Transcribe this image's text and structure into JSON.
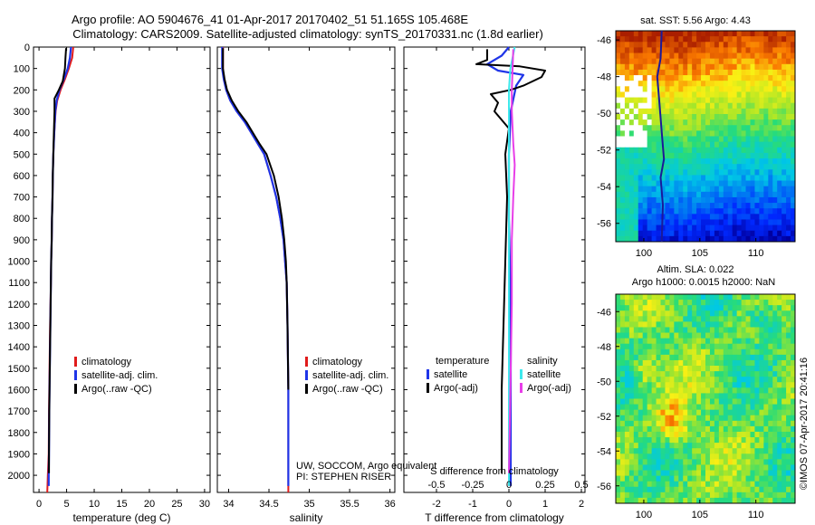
{
  "title": {
    "line1": "Argo profile: AO 5904676_41 01-Apr-2017 20170402_51 51.165S 105.468E",
    "line2": "Climatology: CARS2009. Satellite-adjusted climatology: synTS_20170331.nc (1.8d earlier)"
  },
  "colors": {
    "climatology": "#e01b1b",
    "satellite": "#1f35e8",
    "argo": "#000000",
    "sal_satellite": "#3ee8ec",
    "sal_argo": "#e83ee8"
  },
  "depth_axis": {
    "ylim": [
      0,
      2080
    ],
    "ticks": [
      0,
      100,
      200,
      300,
      400,
      500,
      600,
      700,
      800,
      900,
      1000,
      1100,
      1200,
      1300,
      1400,
      1500,
      1600,
      1700,
      1800,
      1900,
      2000
    ]
  },
  "chart_data": [
    {
      "id": "temperature",
      "type": "line",
      "xlabel": "temperature (deg C)",
      "xlim": [
        -1,
        31
      ],
      "xticks": [
        0,
        5,
        10,
        15,
        20,
        25,
        30
      ],
      "legend": [
        "climatology",
        "satellite-adj. clim.",
        "Argo(..raw -QC)"
      ],
      "series": [
        {
          "name": "climatology",
          "color": "climatology",
          "x": [
            6.2,
            6.0,
            5.4,
            4.7,
            3.9,
            3.3,
            3.0,
            2.75,
            2.6,
            2.5,
            2.45,
            2.35,
            2.3,
            2.2,
            2.15,
            2.0,
            1.9,
            1.8,
            1.75,
            1.6,
            1.5
          ],
          "y": [
            0,
            50,
            100,
            150,
            200,
            250,
            300,
            400,
            500,
            600,
            700,
            800,
            900,
            1000,
            1100,
            1300,
            1500,
            1700,
            1900,
            2000,
            2080
          ]
        },
        {
          "name": "satellite",
          "color": "satellite",
          "x": [
            5.8,
            5.6,
            5.2,
            4.5,
            3.7,
            3.2,
            2.95,
            2.75,
            2.6,
            2.5,
            2.45,
            2.35,
            2.3,
            2.2,
            2.15,
            2.05,
            1.95,
            1.85,
            1.8,
            1.75,
            1.75
          ],
          "y": [
            0,
            50,
            100,
            150,
            200,
            250,
            300,
            400,
            500,
            600,
            700,
            800,
            900,
            1000,
            1100,
            1300,
            1500,
            1700,
            1900,
            2000,
            2050
          ]
        },
        {
          "name": "argo",
          "color": "argo",
          "x": [
            4.9,
            4.8,
            4.7,
            4.3,
            3.6,
            2.8,
            2.8,
            2.7,
            2.6,
            2.5,
            2.45,
            2.35,
            2.3,
            2.2,
            2.15,
            2.05,
            1.95,
            1.85,
            1.8,
            1.8
          ],
          "y": [
            5,
            50,
            100,
            160,
            200,
            240,
            300,
            400,
            500,
            600,
            700,
            800,
            900,
            1000,
            1100,
            1300,
            1500,
            1700,
            1900,
            1990
          ]
        }
      ]
    },
    {
      "id": "salinity",
      "type": "line",
      "xlabel": "salinity",
      "xlim": [
        33.86,
        36.06
      ],
      "xticks": [
        34,
        34.5,
        35,
        35.5,
        36
      ],
      "legend": [
        "climatology",
        "satellite-adj. clim.",
        "Argo(..raw -QC)"
      ],
      "annotation": [
        "UW, SOCCOM, Argo equivalent",
        "PI: STEPHEN RISER"
      ],
      "series": [
        {
          "name": "climatology",
          "color": "climatology",
          "x": [
            33.93,
            33.93,
            33.94,
            33.97,
            34.02,
            34.1,
            34.2,
            34.28,
            34.36,
            34.44,
            34.52,
            34.59,
            34.64,
            34.68,
            34.7,
            34.72,
            34.73,
            34.74,
            34.74
          ],
          "y": [
            0,
            100,
            150,
            200,
            250,
            300,
            350,
            400,
            450,
            500,
            600,
            700,
            800,
            900,
            1000,
            1100,
            1300,
            1600,
            2080
          ]
        },
        {
          "name": "satellite",
          "color": "satellite",
          "x": [
            33.92,
            33.92,
            33.94,
            33.97,
            34.02,
            34.1,
            34.2,
            34.28,
            34.36,
            34.44,
            34.52,
            34.59,
            34.64,
            34.68,
            34.7,
            34.72,
            34.73,
            34.74,
            34.74
          ],
          "y": [
            0,
            100,
            150,
            200,
            250,
            300,
            350,
            400,
            450,
            500,
            600,
            700,
            800,
            900,
            1000,
            1100,
            1300,
            1600,
            2050
          ]
        },
        {
          "name": "argo",
          "color": "argo",
          "x": [
            33.93,
            33.93,
            33.95,
            33.98,
            34.04,
            34.12,
            34.22,
            34.3,
            34.38,
            34.47,
            34.56,
            34.62,
            34.66,
            34.69,
            34.71,
            34.72,
            34.73,
            34.74
          ],
          "y": [
            5,
            100,
            150,
            200,
            250,
            300,
            350,
            400,
            450,
            500,
            600,
            700,
            800,
            900,
            1000,
            1100,
            1300,
            1600
          ]
        }
      ]
    },
    {
      "id": "difference",
      "type": "line",
      "xlabel": "T difference from climatology",
      "xlabel2": "S difference from climatology",
      "xlim": [
        -2.9,
        2.1
      ],
      "xticks": [
        -2,
        -1,
        0,
        1,
        2
      ],
      "x2lim": [
        -0.725,
        0.525
      ],
      "x2ticks": [
        -0.5,
        -0.25,
        0,
        0.25,
        0.5
      ],
      "x2ticklabels": [
        "-0.5",
        "-0.25",
        "0",
        "0.25",
        "0.5"
      ],
      "legend_temperature_title": "temperature",
      "legend_salinity_title": "salinity",
      "legend_temperature": [
        "satellite",
        "Argo(-adj)"
      ],
      "legend_salinity": [
        "satellite",
        "Argo(-adj)"
      ],
      "series": [
        {
          "name": "T satellite",
          "color": "satellite",
          "scale": "T",
          "x": [
            0,
            -0.2,
            -0.6,
            -0.3,
            0.4,
            0.2,
            0.05,
            0,
            0,
            0.05,
            0.05,
            0.05,
            0.05
          ],
          "y": [
            0,
            40,
            80,
            110,
            130,
            180,
            300,
            500,
            800,
            1200,
            1600,
            1900,
            2050
          ]
        },
        {
          "name": "T argo",
          "color": "argo",
          "scale": "T",
          "x": [
            -0.6,
            -0.6,
            -0.9,
            0.3,
            1.0,
            0.9,
            0.4,
            0.05,
            -0.5,
            -0.3,
            -0.4,
            0.0,
            -0.1,
            -0.05,
            -0.1,
            -0.15,
            -0.2,
            -0.2,
            -0.2
          ],
          "y": [
            10,
            60,
            80,
            90,
            110,
            140,
            180,
            200,
            220,
            260,
            300,
            380,
            500,
            700,
            1000,
            1300,
            1600,
            1900,
            1990
          ]
        },
        {
          "name": "S satellite",
          "color": "sal_satellite",
          "scale": "S",
          "x": [
            0.04,
            0.01,
            0.0,
            0.0,
            0.0,
            0.0,
            0.0,
            0.0,
            0.0
          ],
          "y": [
            0,
            100,
            200,
            400,
            700,
            1000,
            1400,
            1800,
            2050
          ]
        },
        {
          "name": "S argo",
          "color": "sal_argo",
          "scale": "S",
          "x": [
            0.03,
            0.02,
            0.02,
            0.03,
            0.04,
            0.03,
            0.02,
            0.02,
            0.01,
            0.0
          ],
          "y": [
            10,
            200,
            300,
            450,
            550,
            700,
            900,
            1200,
            1600,
            1990
          ]
        }
      ]
    },
    {
      "id": "sst_map",
      "type": "heatmap",
      "title": "sat. SST: 5.56  Argo: 4.43",
      "xlim": [
        97.5,
        113.5
      ],
      "ylim": [
        -57,
        -45.5
      ],
      "xticks": [
        100,
        105,
        110
      ],
      "yticks": [
        -46,
        -48,
        -50,
        -52,
        -54,
        -56
      ]
    },
    {
      "id": "sla_map",
      "type": "heatmap",
      "title": "Altim. SLA: 0.022",
      "subtitle": "Argo h1000: 0.0015 h2000: NaN",
      "xlim": [
        97.5,
        113.5
      ],
      "ylim": [
        -57,
        -45
      ],
      "xticks": [
        100,
        105,
        110
      ],
      "yticks": [
        -46,
        -48,
        -50,
        -52,
        -54,
        -56
      ]
    }
  ],
  "credit": "©IMOS 07-Apr-2017 20:41:16"
}
